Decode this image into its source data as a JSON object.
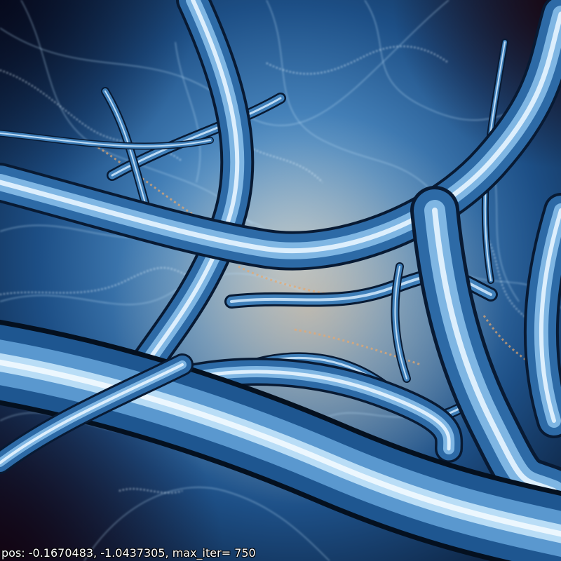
{
  "caption": {
    "text": "pos: -0.1670483, -1.0437305, max_iter= 750"
  },
  "palette": {
    "background_deep": "#061024",
    "background_mid": "#1d4f86",
    "background_light": "#9cc9ea",
    "tube_dark": "#081a33",
    "tube_mid": "#3f7fb9",
    "tube_light": "#d6ecff",
    "filament": "#b9ddf6",
    "accent_orange": "#e7a86e",
    "corner_dark": "#1a0610"
  }
}
